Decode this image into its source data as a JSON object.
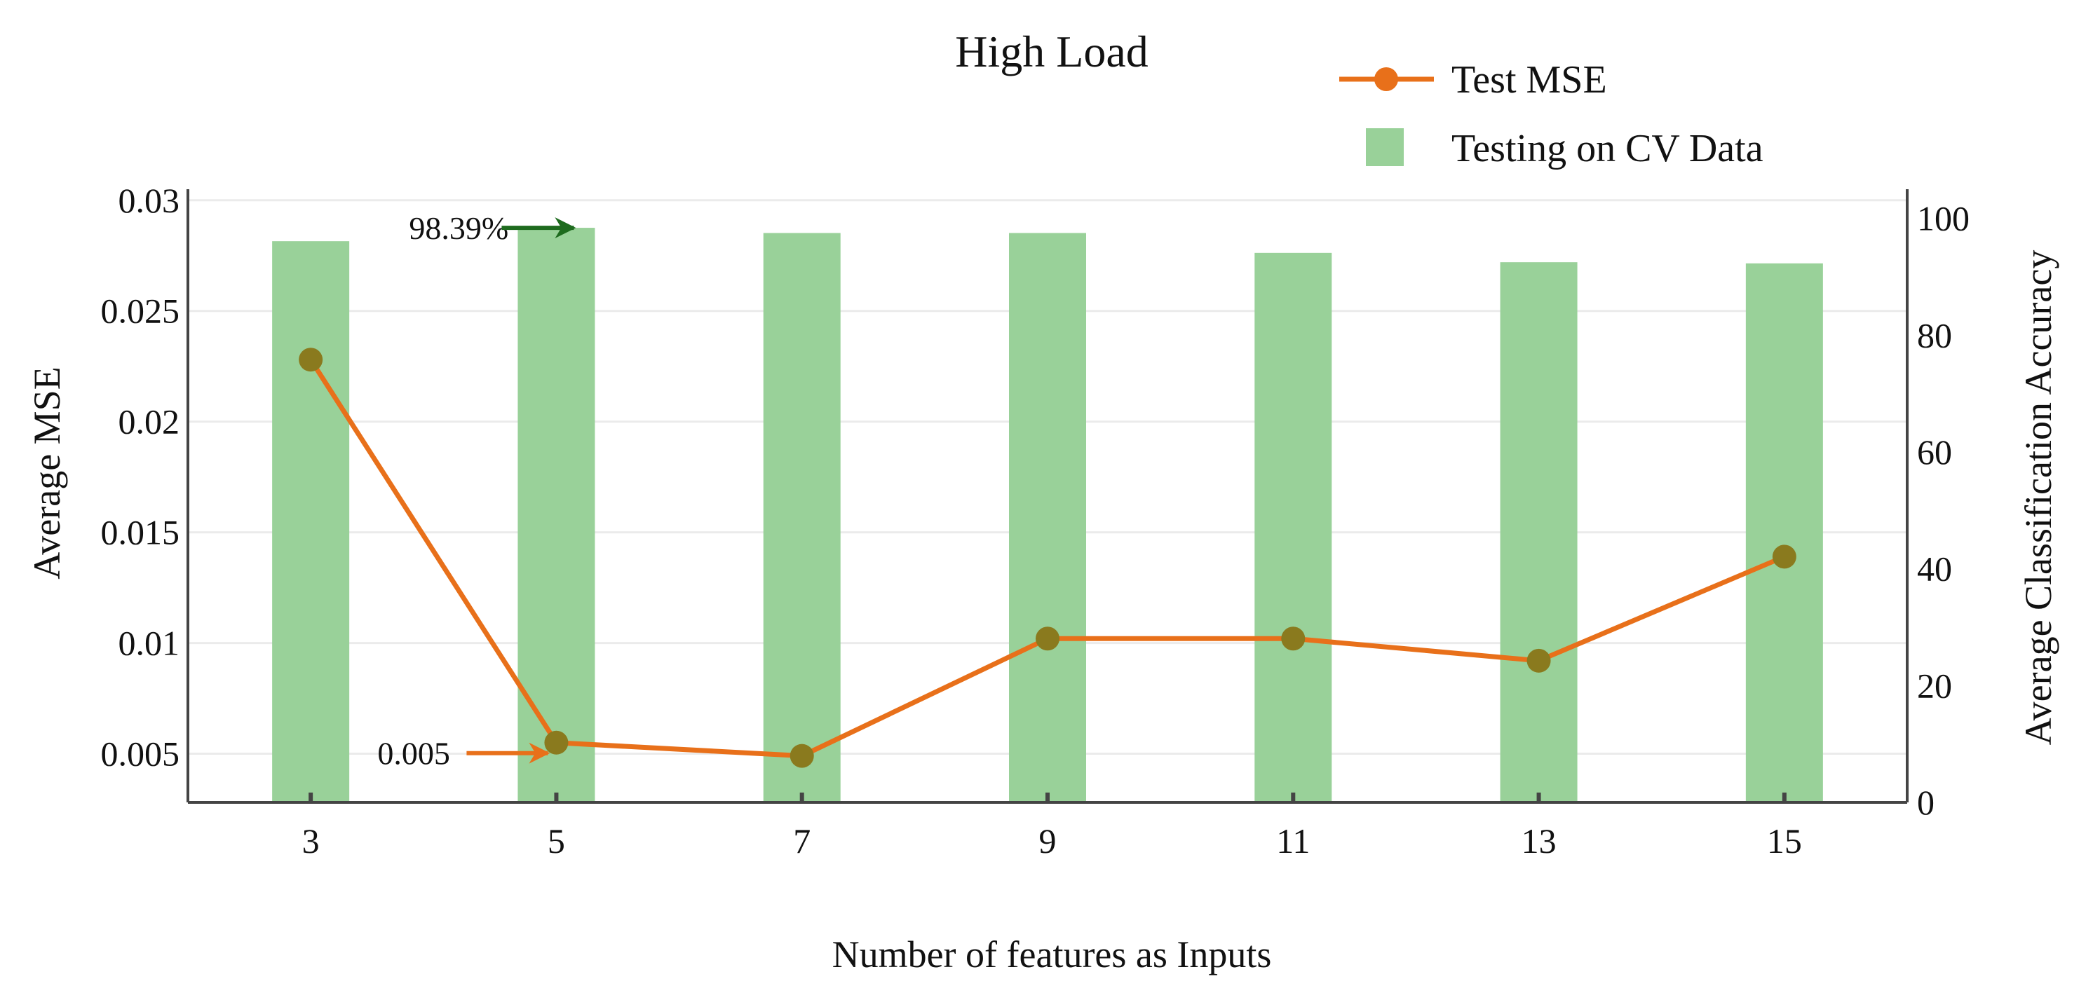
{
  "chart_data": {
    "type": "bar+line",
    "title": "High Load",
    "xlabel": "Number of features as Inputs",
    "ylabel_left": "Average MSE",
    "ylabel_right": "Average Classification Accuracy",
    "categories": [
      "3",
      "5",
      "7",
      "9",
      "11",
      "13",
      "15"
    ],
    "y_left_ticks": [
      "0.005",
      "0.01",
      "0.015",
      "0.02",
      "0.025",
      "0.03"
    ],
    "y_left_tick_values": [
      0.005,
      0.01,
      0.015,
      0.02,
      0.025,
      0.03
    ],
    "y_right_ticks": [
      "0",
      "20",
      "40",
      "60",
      "80",
      "100"
    ],
    "y_right_tick_values": [
      0,
      20,
      40,
      60,
      80,
      100
    ],
    "ylim_left": [
      0.0028,
      0.0305
    ],
    "ylim_right": [
      0,
      105
    ],
    "grid": true,
    "legend_position": "top-right",
    "series": [
      {
        "name": "Test MSE",
        "kind": "line",
        "axis": "left",
        "color": "#e8701a",
        "marker_color": "#8a7a1e",
        "values": [
          0.0228,
          0.0055,
          0.0049,
          0.0102,
          0.0102,
          0.0092,
          0.0139
        ]
      },
      {
        "name": "Testing on CV Data",
        "kind": "bar",
        "axis": "right",
        "color": "#99d199",
        "values": [
          96.1,
          98.39,
          97.5,
          97.5,
          94.1,
          92.5,
          92.3
        ]
      }
    ],
    "annotations": [
      {
        "text": "98.39%",
        "series": "Testing on CV Data",
        "category": "5",
        "color": "#1e6b1e"
      },
      {
        "text": "0.005",
        "series": "Test MSE",
        "category": "5",
        "color": "#e8701a"
      }
    ]
  }
}
